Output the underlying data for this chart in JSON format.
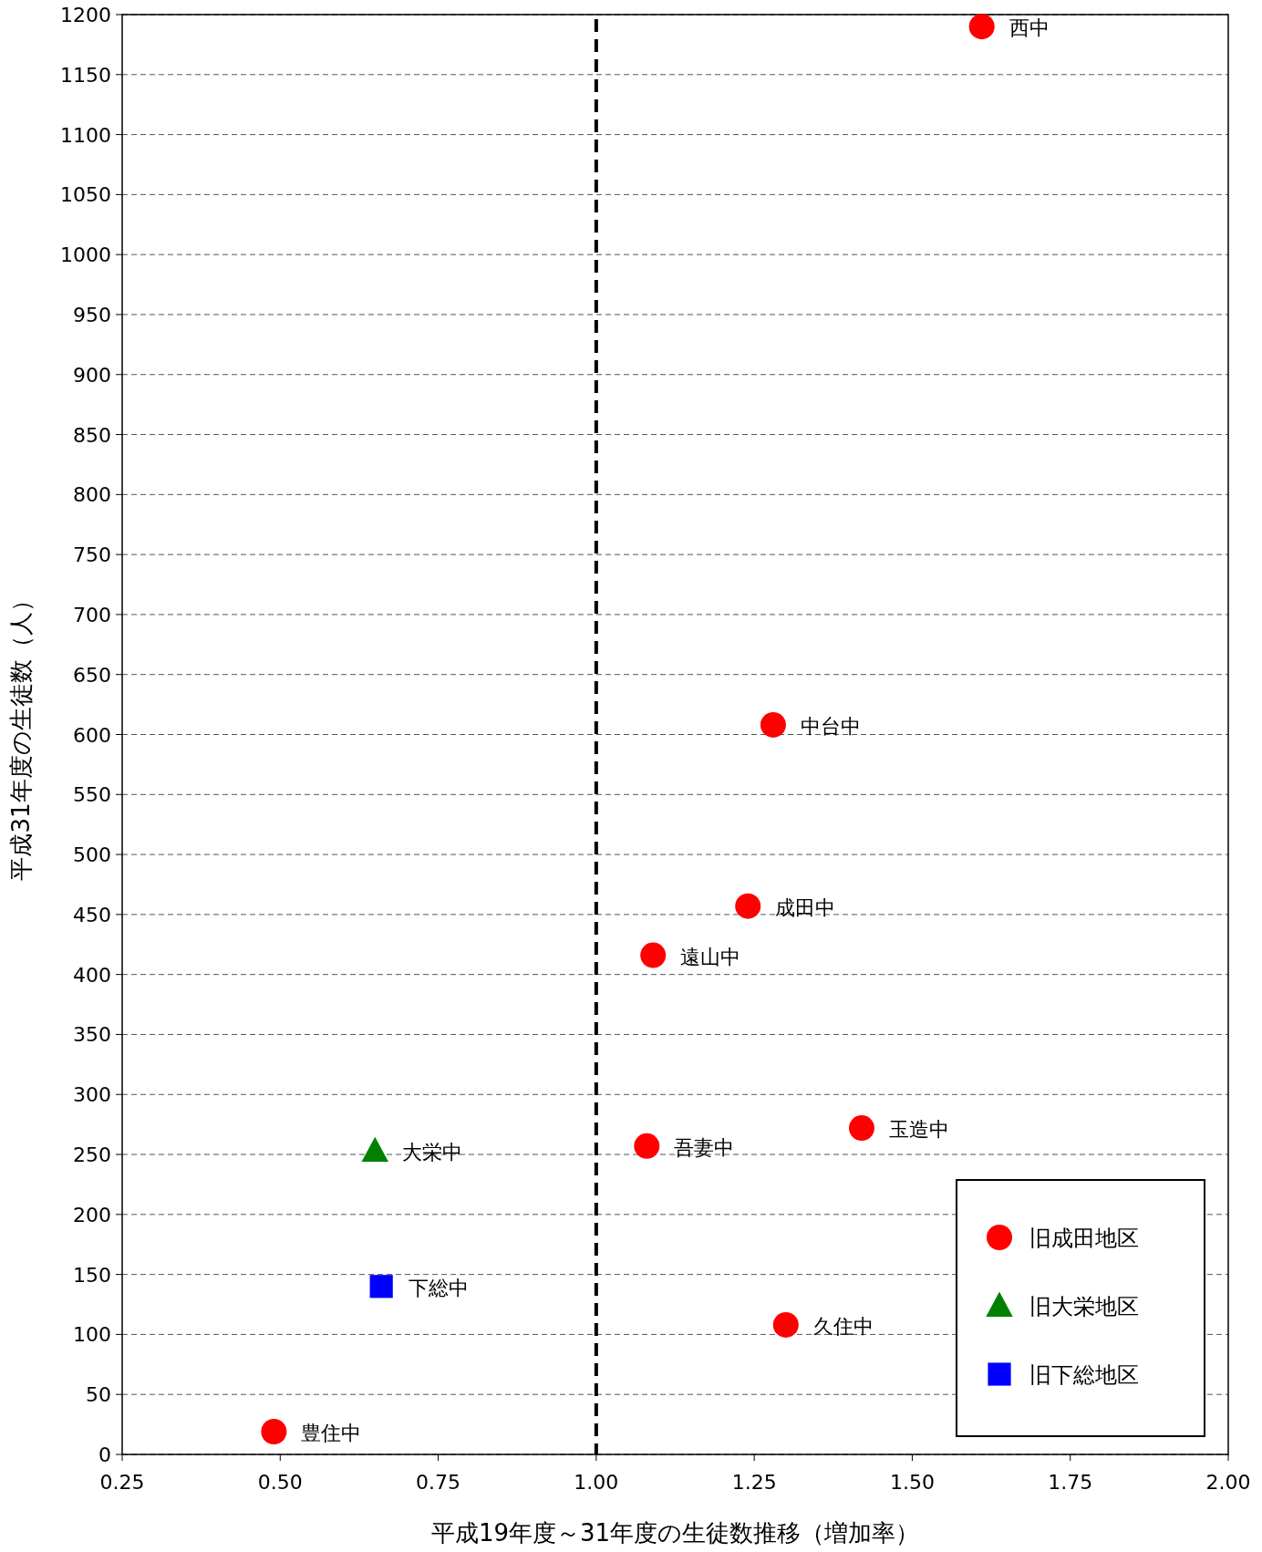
{
  "chart_data": {
    "type": "scatter",
    "xlabel": "平成19年度～31年度の生徒数推移（増加率）",
    "ylabel": "平成31年度の生徒数（人）",
    "xlim": [
      0.25,
      2
    ],
    "xticks": [
      {
        "value": 0.25,
        "label": "0.25"
      },
      {
        "value": 0.5,
        "label": "0.50"
      },
      {
        "value": 0.75,
        "label": "0.75"
      },
      {
        "value": 1,
        "label": "1.00"
      },
      {
        "value": 1.25,
        "label": "1.25"
      },
      {
        "value": 1.5,
        "label": "1.50"
      },
      {
        "value": 1.75,
        "label": "1.75"
      },
      {
        "value": 2,
        "label": "2.00"
      }
    ],
    "ylim": [
      0,
      1200
    ],
    "yticks": [
      0,
      50,
      100,
      150,
      200,
      250,
      300,
      350,
      400,
      450,
      500,
      550,
      600,
      650,
      700,
      750,
      800,
      850,
      900,
      950,
      1000,
      1050,
      1100,
      1150,
      1200
    ],
    "grid": "y",
    "legend": "bottom right",
    "ref_lines": [
      {
        "axis": "x",
        "value": 1,
        "color": "#000000",
        "line_style": "dashed"
      }
    ],
    "series": [
      {
        "name": "旧成田地区",
        "color": "#ff0000",
        "marker": "circle",
        "x": [
          1.61,
          1.28,
          1.24,
          1.09,
          1.08,
          1.42,
          1.3,
          0.49
        ],
        "values": [
          1190,
          608,
          457,
          416,
          257,
          272,
          108,
          19
        ]
      },
      {
        "name": "旧大栄地区",
        "color": "#008000",
        "marker": "triangle",
        "x": [
          0.65
        ],
        "values": [
          253
        ]
      },
      {
        "name": "旧下総地区",
        "color": "#0000ff",
        "marker": "square",
        "x": [
          0.66
        ],
        "values": [
          140
        ]
      }
    ],
    "annotations": [
      {
        "text": "西中",
        "x": 1.61,
        "y": 1190
      },
      {
        "text": "中台中",
        "x": 1.28,
        "y": 608
      },
      {
        "text": "成田中",
        "x": 1.24,
        "y": 457
      },
      {
        "text": "遠山中",
        "x": 1.09,
        "y": 416
      },
      {
        "text": "吾妻中",
        "x": 1.08,
        "y": 257
      },
      {
        "text": "玉造中",
        "x": 1.42,
        "y": 272
      },
      {
        "text": "久住中",
        "x": 1.3,
        "y": 108
      },
      {
        "text": "豊住中",
        "x": 0.49,
        "y": 19
      },
      {
        "text": "大栄中",
        "x": 0.65,
        "y": 253
      },
      {
        "text": "下総中",
        "x": 0.66,
        "y": 140
      }
    ]
  }
}
